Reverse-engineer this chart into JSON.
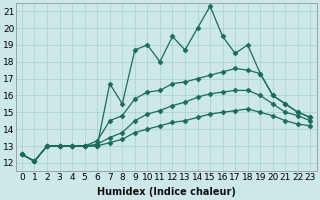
{
  "xlabel": "Humidex (Indice chaleur)",
  "background_color": "#cce8e8",
  "grid_color": "#aacfcf",
  "line_color": "#1a6b5a",
  "xlim": [
    -0.5,
    23.5
  ],
  "ylim": [
    11.5,
    21.5
  ],
  "xticks": [
    0,
    1,
    2,
    3,
    4,
    5,
    6,
    7,
    8,
    9,
    10,
    11,
    12,
    13,
    14,
    15,
    16,
    17,
    18,
    19,
    20,
    21,
    22,
    23
  ],
  "yticks": [
    12,
    13,
    14,
    15,
    16,
    17,
    18,
    19,
    20,
    21
  ],
  "series": [
    [
      12.5,
      12.1,
      13.0,
      13.0,
      13.0,
      13.0,
      13.0,
      16.7,
      15.5,
      18.7,
      19.0,
      18.0,
      19.5,
      18.7,
      20.0,
      21.3,
      19.5,
      18.5,
      19.0,
      17.3,
      16.0,
      15.5,
      15.0,
      14.7
    ],
    [
      12.5,
      12.1,
      13.0,
      13.0,
      13.0,
      13.0,
      13.3,
      14.5,
      14.8,
      15.8,
      16.2,
      16.3,
      16.7,
      16.8,
      17.0,
      17.2,
      17.4,
      17.6,
      17.5,
      17.3,
      16.0,
      15.5,
      15.0,
      14.7
    ],
    [
      12.5,
      12.1,
      13.0,
      13.0,
      13.0,
      13.0,
      13.1,
      13.5,
      13.8,
      14.5,
      14.9,
      15.1,
      15.4,
      15.6,
      15.9,
      16.1,
      16.2,
      16.3,
      16.3,
      16.0,
      15.5,
      15.0,
      14.8,
      14.5
    ],
    [
      12.5,
      12.1,
      13.0,
      13.0,
      13.0,
      13.0,
      13.0,
      13.2,
      13.4,
      13.8,
      14.0,
      14.2,
      14.4,
      14.5,
      14.7,
      14.9,
      15.0,
      15.1,
      15.2,
      15.0,
      14.8,
      14.5,
      14.3,
      14.2
    ]
  ],
  "marker": "D",
  "markersize": 2.5,
  "linewidth": 0.9,
  "xlabel_fontsize": 7,
  "tick_fontsize": 6.5
}
